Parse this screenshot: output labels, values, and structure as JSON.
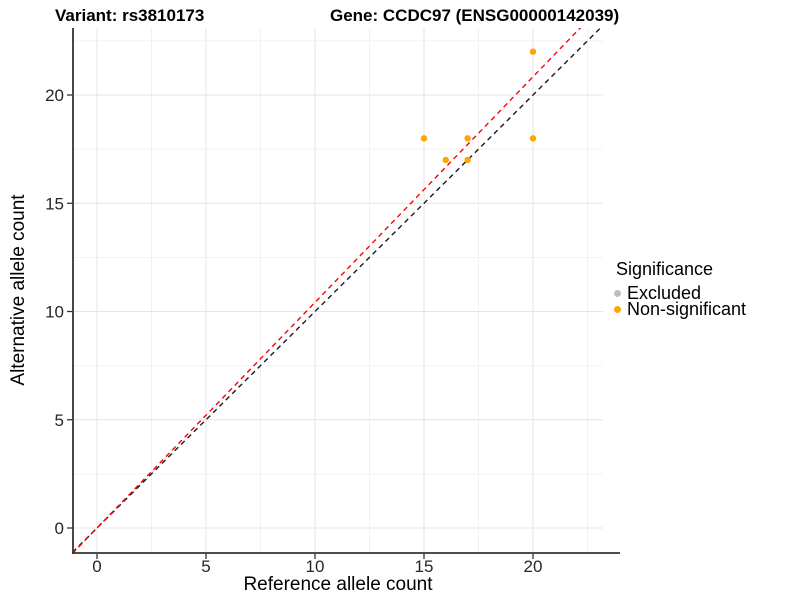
{
  "page": {
    "background": "#FFFFFF"
  },
  "header": {
    "variant_title": "Variant: rs3810173",
    "gene_title": "Gene: CCDC97 (ENSG00000142039)"
  },
  "chart_data": {
    "type": "scatter",
    "xlabel": "Reference allele count",
    "ylabel": "Alternative allele count",
    "x_ticks": [
      0,
      5,
      10,
      15,
      20
    ],
    "y_ticks": [
      0,
      5,
      10,
      15,
      20
    ],
    "minor_ticks": [
      2.5,
      7.5,
      12.5,
      17.5,
      22.5
    ],
    "xlim": [
      -1.1,
      23.2
    ],
    "ylim": [
      -1.15,
      23.1
    ],
    "grid": true,
    "legend_position": "right",
    "series": [
      {
        "name": "Non-significant",
        "color": "#FFA500",
        "points": [
          [
            15,
            18
          ],
          [
            16,
            17
          ],
          [
            17,
            17
          ],
          [
            17,
            18
          ],
          [
            20,
            18
          ],
          [
            20,
            22
          ]
        ]
      },
      {
        "name": "Excluded",
        "color": "#BEBEBE",
        "points": []
      }
    ],
    "lines": [
      {
        "name": "black-dashed-identity",
        "color": "#1A1A1A",
        "slope": 1.0,
        "intercept": 0,
        "style": "dashed"
      },
      {
        "name": "red-dashed-fit",
        "color": "#FF0000",
        "slope": 1.042,
        "intercept": 0,
        "style": "dashed"
      }
    ],
    "legend": {
      "title": "Significance",
      "entries": [
        {
          "label": "Excluded",
          "color": "#BEBEBE"
        },
        {
          "label": "Non-significant",
          "color": "#FFA500"
        }
      ]
    }
  }
}
